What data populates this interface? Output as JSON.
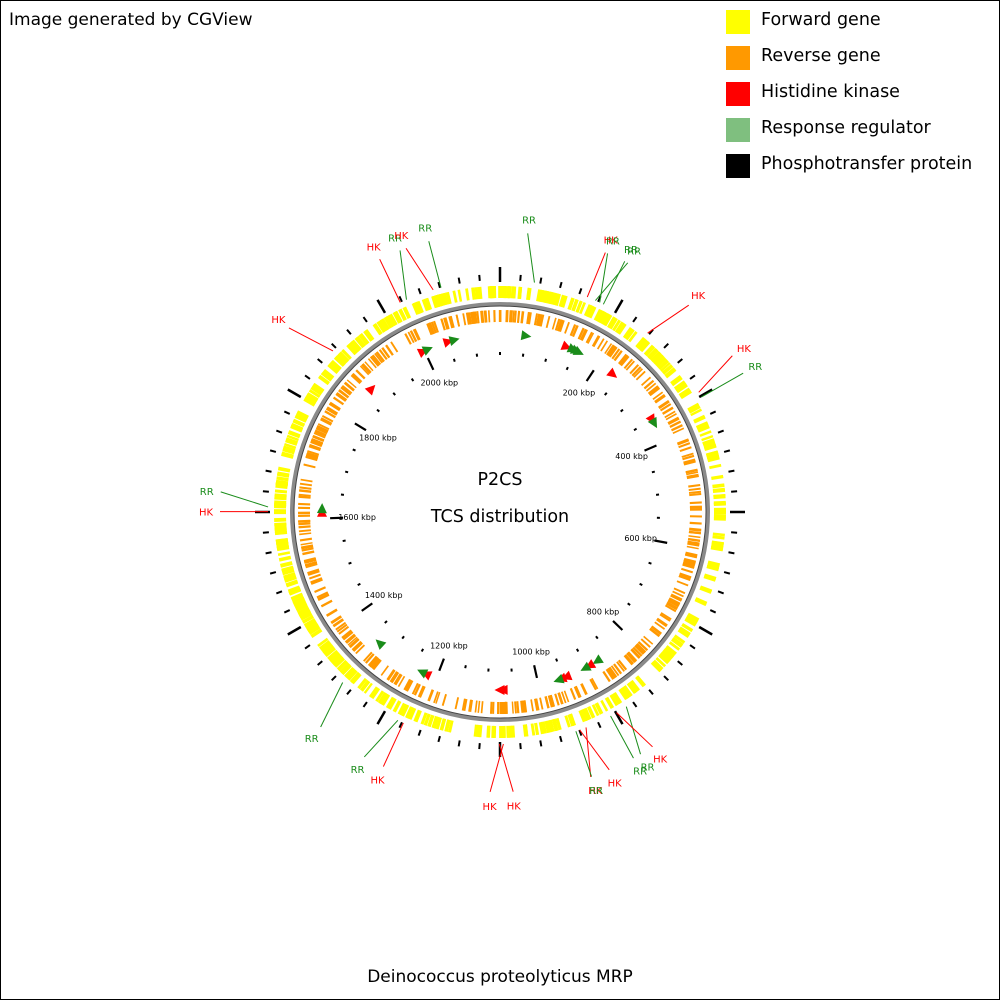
{
  "credit": "Image generated by CGView",
  "legend": [
    {
      "label": "Forward gene",
      "color": "#ffff00"
    },
    {
      "label": "Reverse gene",
      "color": "#ff9900"
    },
    {
      "label": "Histidine kinase",
      "color": "#ff0000"
    },
    {
      "label": "Response regulator",
      "color": "#7fbf7f"
    },
    {
      "label": "Phosphotransfer protein",
      "color": "#000000"
    }
  ],
  "map": {
    "title_line1": "P2CS",
    "title_line2": "TCS distribution",
    "organism": "Deinococcus proteolyticus MRP",
    "genome_kbp": 2150,
    "ruler_labels": [
      {
        "kbp": 200,
        "text": "200 kbp"
      },
      {
        "kbp": 400,
        "text": "400 kbp"
      },
      {
        "kbp": 600,
        "text": "600 kbp"
      },
      {
        "kbp": 800,
        "text": "800 kbp"
      },
      {
        "kbp": 1000,
        "text": "1000 kbp"
      },
      {
        "kbp": 1200,
        "text": "1200 kbp"
      },
      {
        "kbp": 1400,
        "text": "1400 kbp"
      },
      {
        "kbp": 1600,
        "text": "1600 kbp"
      },
      {
        "kbp": 1800,
        "text": "1800 kbp"
      },
      {
        "kbp": 2000,
        "text": "2000 kbp"
      }
    ],
    "features": [
      {
        "type": "RR",
        "kbp": 51
      },
      {
        "type": "HK",
        "kbp": 132
      },
      {
        "type": "RR",
        "kbp": 145
      },
      {
        "type": "RR",
        "kbp": 152
      },
      {
        "type": "RR",
        "kbp": 158
      },
      {
        "type": "HK",
        "kbp": 236
      },
      {
        "type": "HK",
        "kbp": 352
      },
      {
        "type": "RR",
        "kbp": 360
      },
      {
        "type": "RR",
        "kbp": 878
      },
      {
        "type": "HK",
        "kbp": 895
      },
      {
        "type": "RR",
        "kbp": 905
      },
      {
        "type": "HK",
        "kbp": 945
      },
      {
        "type": "HK",
        "kbp": 955
      },
      {
        "type": "RR",
        "kbp": 961
      },
      {
        "type": "HK",
        "kbp": 1070
      },
      {
        "type": "HK",
        "kbp": 1076
      },
      {
        "type": "HK",
        "kbp": 1222
      },
      {
        "type": "RR",
        "kbp": 1231
      },
      {
        "type": "RR",
        "kbp": 1330
      },
      {
        "type": "HK",
        "kbp": 1613
      },
      {
        "type": "RR",
        "kbp": 1620
      },
      {
        "type": "HK",
        "kbp": 1875
      },
      {
        "type": "HK",
        "kbp": 1998
      },
      {
        "type": "RR",
        "kbp": 2008
      },
      {
        "type": "HK",
        "kbp": 2050
      },
      {
        "type": "RR",
        "kbp": 2062
      }
    ]
  }
}
